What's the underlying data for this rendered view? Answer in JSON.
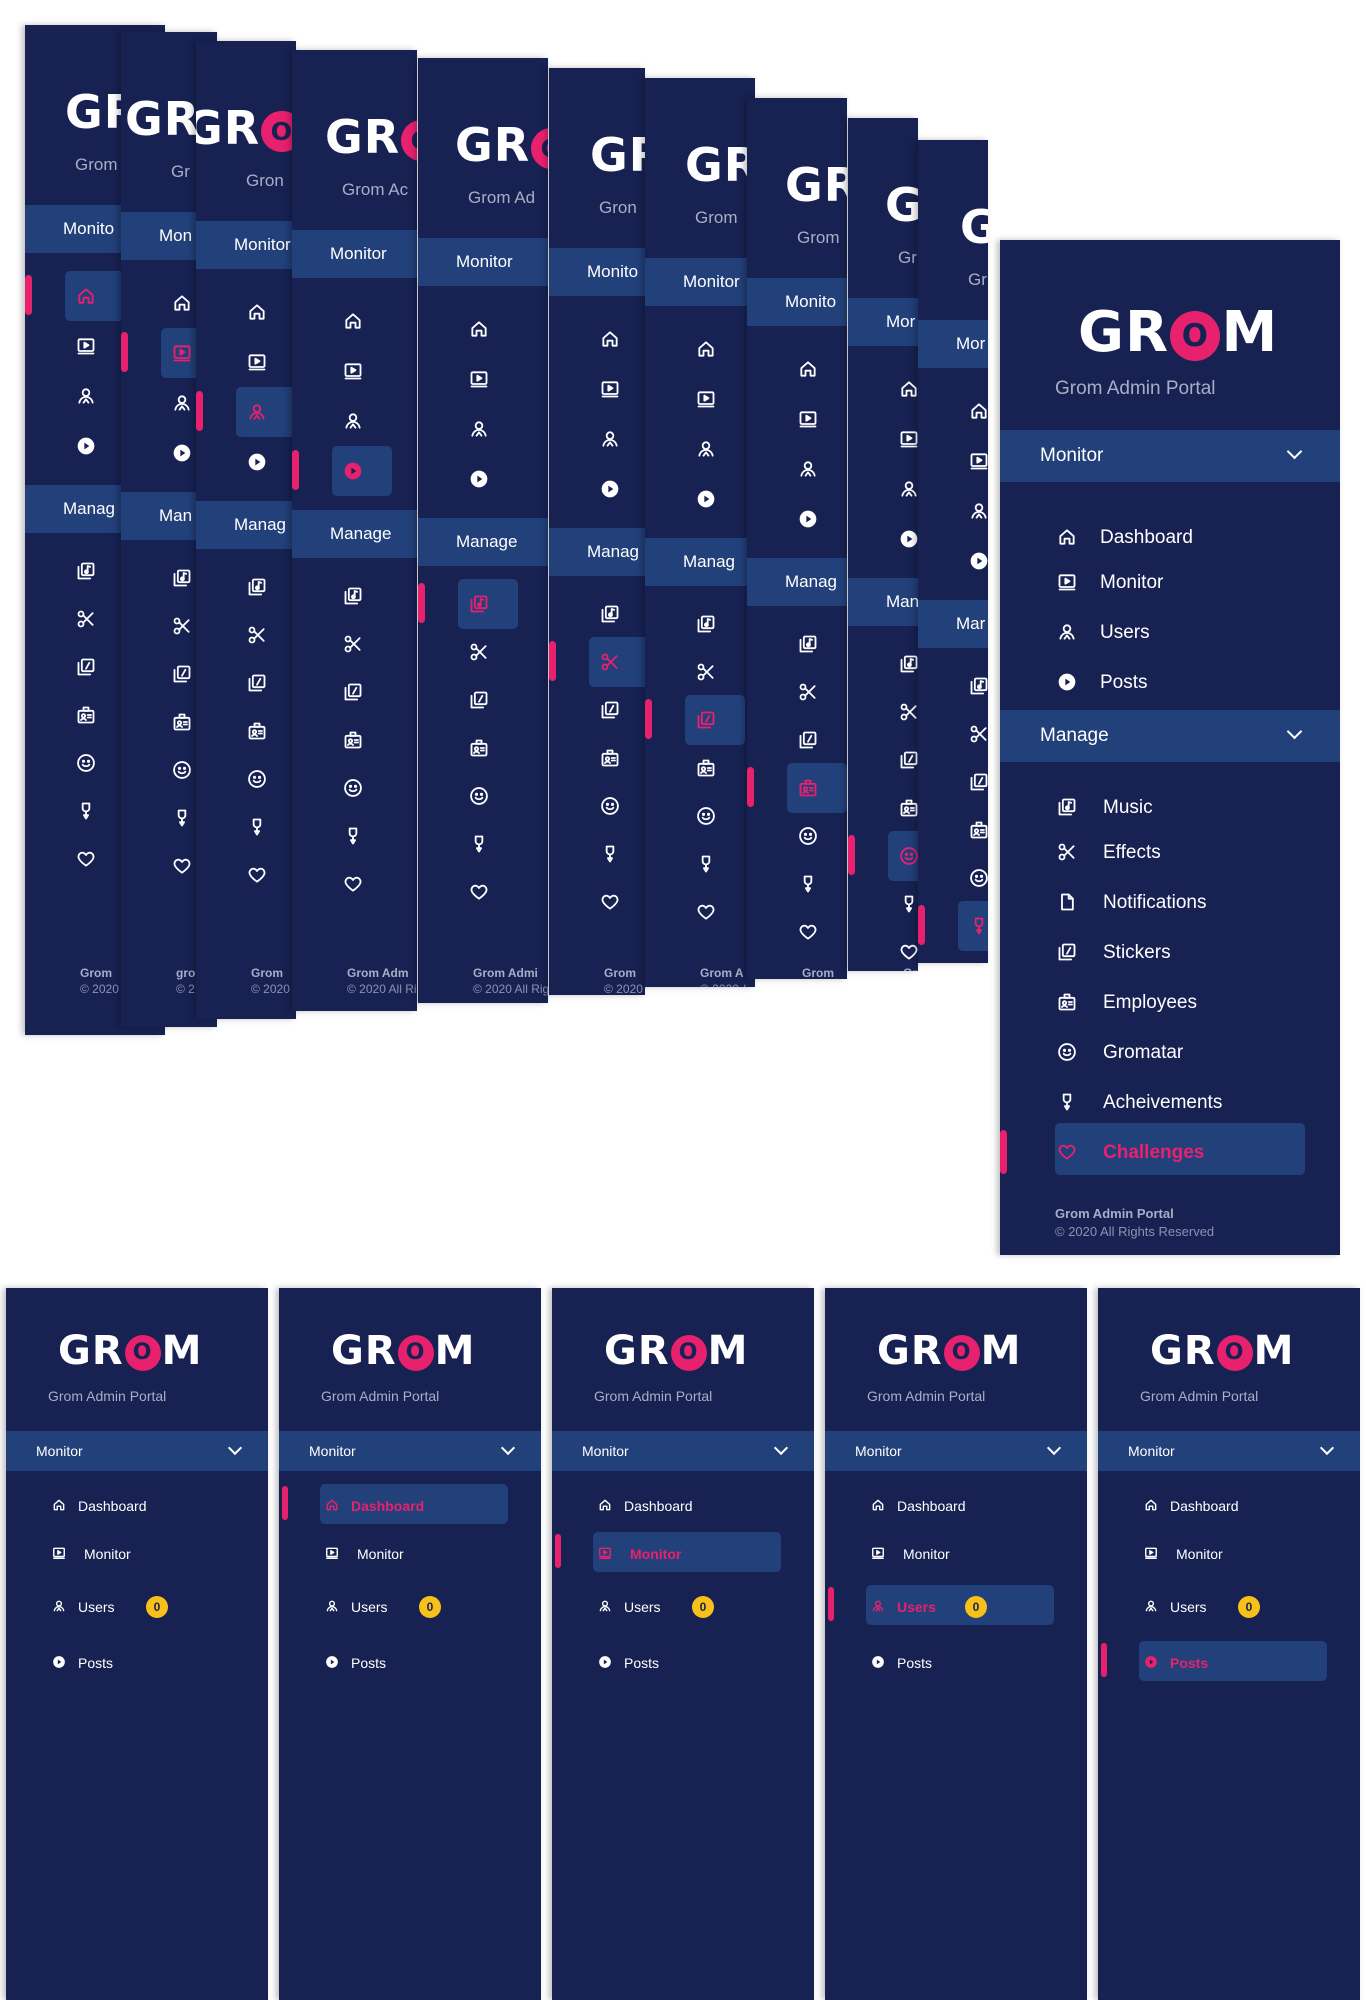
{
  "brand": {
    "logo_pre": "GR",
    "logo_o": "O",
    "logo_post": "M",
    "subtitle": "Grom Admin Portal",
    "subtitle_short": "Grom",
    "subtitle_gr": "Gr",
    "footer_title": "Grom Admin Portal",
    "footer_copy": "© 2020 All Rights Reserved"
  },
  "colors": {
    "panel": "#172253",
    "section": "#22407a",
    "accent": "#e8216f",
    "badge": "#f7c11a"
  },
  "sections": {
    "monitor": "Monitor",
    "manage": "Manage"
  },
  "monitor_items": [
    {
      "label": "Dashboard",
      "icon": "home-icon"
    },
    {
      "label": "Monitor",
      "icon": "monitor-play-icon"
    },
    {
      "label": "Users",
      "icon": "users-icon"
    },
    {
      "label": "Posts",
      "icon": "play-circle-icon"
    }
  ],
  "manage_items": [
    {
      "label": "Music",
      "icon": "music-icon"
    },
    {
      "label": "Effects",
      "icon": "scissors-icon"
    },
    {
      "label": "Notifications",
      "icon": "file-icon"
    },
    {
      "label": "Stickers",
      "icon": "sticker-icon"
    },
    {
      "label": "Employees",
      "icon": "id-card-icon"
    },
    {
      "label": "Gromatar",
      "icon": "smile-icon"
    },
    {
      "label": "Acheivements",
      "icon": "medal-icon"
    },
    {
      "label": "Challenges",
      "icon": "heart-icon"
    }
  ],
  "clip": {
    "monitor_dash": "Das",
    "monitor_mo": "Mo",
    "monitor_use": "Use",
    "monitor_pos": "Pos",
    "monitor_mu": "Mu",
    "monitor_mus": "Mus",
    "monitor_effe": "Effe",
    "monitor_stic": "Stic",
    "monitor_em": "Em",
    "monitor_gr": "Gr",
    "monitor_gro": "Gro",
    "monitor_ac": "Ac",
    "monitor_ach": "Ach",
    "monitor_ch": "Ch",
    "monitor_che": "Che",
    "monito": "Monito",
    "mon": "Mon",
    "mor": "Mor",
    "mar": "Mar",
    "manag": "Manag",
    "man": "Man",
    "grom_adm": "Grom Adm",
    "grom_admi": "Grom Admi",
    "grom_a": "Grom A",
    "gro": "Gro",
    "copy_short": "© 2020",
    "copy_mid": "© 2020 All Ri",
    "copy_rig": "© 2020 All Rig",
    "copy_a": "© 2020 /",
    "copy_c": "© 2",
    "grom_ad": "Grom Ad",
    "grom_a2": "Grom Ac"
  },
  "users_badge": "0",
  "bottom_states": [
    "none",
    "dashboard",
    "monitor",
    "users",
    "posts"
  ]
}
